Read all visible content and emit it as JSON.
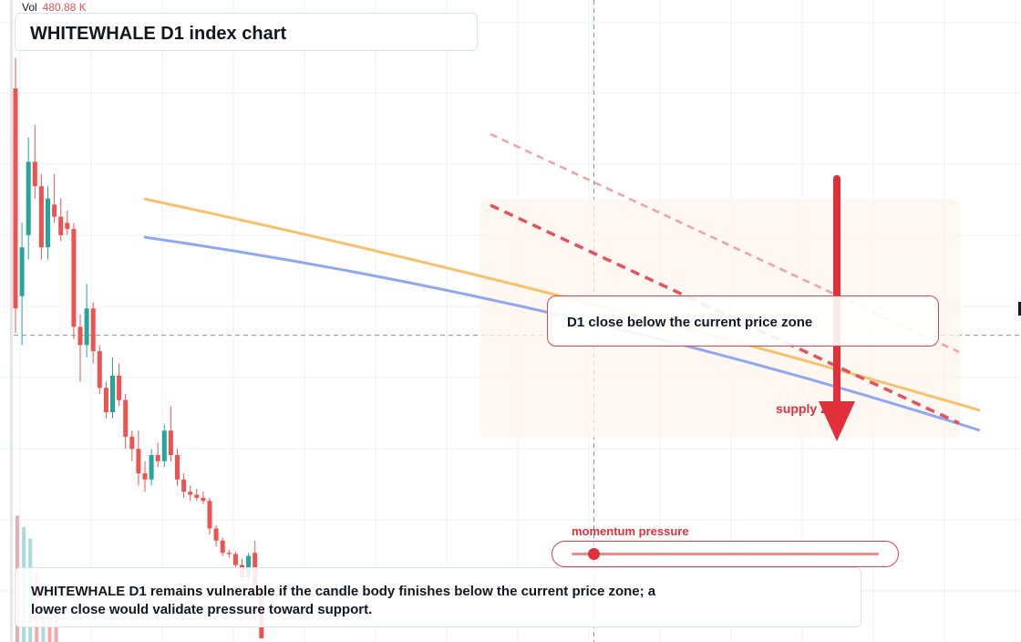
{
  "header": {
    "vol_label": "Vol",
    "vol_value": "480.88 K",
    "title": "WHITEWHALE D1 index chart"
  },
  "annotations": {
    "callout_text": "D1 close below the current price zone",
    "supply_label": "supply zone",
    "momentum_label": "momentum pressure",
    "momentum_level": 0.07,
    "note_text": "WHITEWHALE D1 remains vulnerable if the candle body finishes below the current price zone; a lower close would validate pressure toward support."
  },
  "colors": {
    "up": "#26a69a",
    "down": "#ef5350",
    "ma_orange": "#f7c26b",
    "ma_blue": "#8fa8ee",
    "accent_red": "#e0313b",
    "grid": "#eef0f4",
    "crosshair": "#8a8f99"
  },
  "chart_data": {
    "type": "candlestick",
    "title": "WHITEWHALE D1 index chart",
    "xlabel": "",
    "ylabel": "",
    "grid": true,
    "ylim": [
      0,
      100
    ],
    "crosshair_price": 49.6,
    "candles": [
      {
        "o": 90,
        "h": 95,
        "l": 50,
        "c": 54
      },
      {
        "o": 56,
        "h": 68,
        "l": 48,
        "c": 64
      },
      {
        "o": 66,
        "h": 82,
        "l": 62,
        "c": 78
      },
      {
        "o": 78,
        "h": 84,
        "l": 72,
        "c": 74
      },
      {
        "o": 74,
        "h": 76,
        "l": 62,
        "c": 64
      },
      {
        "o": 64,
        "h": 74,
        "l": 62,
        "c": 72
      },
      {
        "o": 71,
        "h": 76,
        "l": 68,
        "c": 69
      },
      {
        "o": 69,
        "h": 72,
        "l": 65,
        "c": 66
      },
      {
        "o": 68,
        "h": 70,
        "l": 66,
        "c": 67
      },
      {
        "o": 67,
        "h": 68,
        "l": 49,
        "c": 51
      },
      {
        "o": 51,
        "h": 53,
        "l": 42,
        "c": 48
      },
      {
        "o": 48,
        "h": 58,
        "l": 46,
        "c": 54
      },
      {
        "o": 54,
        "h": 55,
        "l": 45,
        "c": 47
      },
      {
        "o": 47,
        "h": 48,
        "l": 40,
        "c": 41
      },
      {
        "o": 41,
        "h": 42,
        "l": 36,
        "c": 37
      },
      {
        "o": 37,
        "h": 46,
        "l": 36,
        "c": 43
      },
      {
        "o": 43,
        "h": 45,
        "l": 38,
        "c": 39
      },
      {
        "o": 39,
        "h": 40,
        "l": 31,
        "c": 33
      },
      {
        "o": 33,
        "h": 34,
        "l": 29,
        "c": 31
      },
      {
        "o": 31,
        "h": 34,
        "l": 25,
        "c": 27
      },
      {
        "o": 27,
        "h": 29,
        "l": 24,
        "c": 26
      },
      {
        "o": 26,
        "h": 31,
        "l": 25,
        "c": 30
      },
      {
        "o": 30,
        "h": 32,
        "l": 28,
        "c": 29
      },
      {
        "o": 29,
        "h": 35,
        "l": 28,
        "c": 34
      },
      {
        "o": 34,
        "h": 38,
        "l": 29,
        "c": 30
      },
      {
        "o": 30,
        "h": 31,
        "l": 25,
        "c": 26
      },
      {
        "o": 26,
        "h": 27,
        "l": 23,
        "c": 24
      },
      {
        "o": 24,
        "h": 25,
        "l": 22.5,
        "c": 23.5
      },
      {
        "o": 23.5,
        "h": 24.5,
        "l": 22.5,
        "c": 23
      },
      {
        "o": 23,
        "h": 24,
        "l": 22,
        "c": 22.5
      },
      {
        "o": 22.5,
        "h": 23,
        "l": 17,
        "c": 18
      },
      {
        "o": 18,
        "h": 18.5,
        "l": 15,
        "c": 16
      },
      {
        "o": 16,
        "h": 16.5,
        "l": 13.5,
        "c": 14
      },
      {
        "o": 14,
        "h": 14.5,
        "l": 13.2,
        "c": 13.8
      },
      {
        "o": 13.8,
        "h": 14.2,
        "l": 11.5,
        "c": 12
      },
      {
        "o": 12,
        "h": 13,
        "l": 9.5,
        "c": 10
      },
      {
        "o": 10,
        "h": 14,
        "l": 9.5,
        "c": 13.5
      },
      {
        "o": 14,
        "h": 16,
        "l": 8,
        "c": 8.5
      },
      {
        "o": 8.5,
        "h": 9,
        "l": 0,
        "c": 0
      }
    ],
    "volume_visible": [
      22,
      20,
      18,
      12,
      9,
      7,
      5
    ],
    "ma_series": [
      {
        "from": [
          52.0,
          90.0
        ],
        "to": [
          1.5,
          8.0
        ]
      },
      {
        "from": [
          52.0,
          84.0
        ],
        "to": [
          1.5,
          5.0
        ]
      }
    ],
    "downtrend_lines": [
      {
        "from": [
          51.0,
          115.0
        ],
        "to": [
          1.5,
          45.0
        ]
      },
      {
        "from": [
          51.0,
          97.0
        ],
        "to": [
          1.5,
          30.0
        ]
      }
    ]
  }
}
